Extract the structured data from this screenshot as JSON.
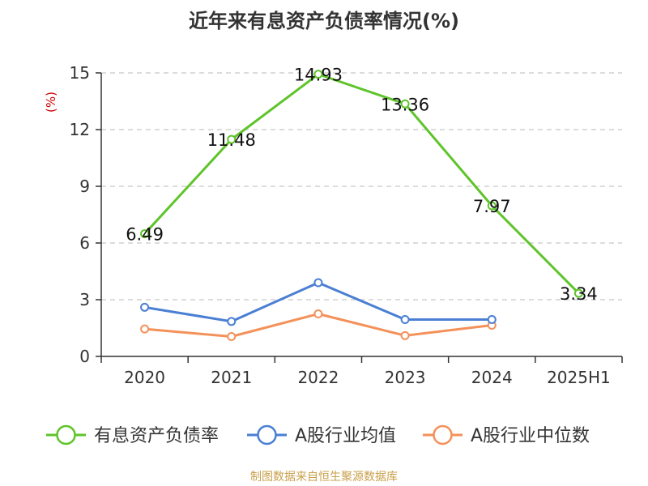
{
  "chart_data": {
    "type": "line",
    "title": "近年来有息资产负债率情况(%)",
    "ylabel": "(%)",
    "xlabel": "",
    "categories": [
      "2020",
      "2021",
      "2022",
      "2023",
      "2024",
      "2025H1"
    ],
    "ylim": [
      0,
      15
    ],
    "yticks": [
      0,
      3,
      6,
      9,
      12,
      15
    ],
    "grid": true,
    "legend_position": "bottom",
    "series": [
      {
        "name": "有息资产负债率",
        "values": [
          6.49,
          11.48,
          14.93,
          13.36,
          7.97,
          3.34
        ],
        "data_labels": [
          "6.49",
          "11.48",
          "14.93",
          "13.36",
          "7.97",
          "3.34"
        ],
        "color": "#5ec42a"
      },
      {
        "name": "A股行业均值",
        "values": [
          2.6,
          1.85,
          3.9,
          1.95,
          1.95,
          null
        ],
        "color": "#4a7fd4"
      },
      {
        "name": "A股行业中位数",
        "values": [
          1.45,
          1.05,
          2.25,
          1.1,
          1.65,
          null
        ],
        "color": "#f4915a"
      }
    ]
  },
  "footer": {
    "source": "制图数据来自恒生聚源数据库"
  }
}
